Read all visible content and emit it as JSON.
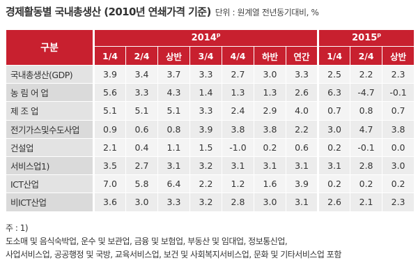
{
  "title": "경제활동별 국내총생산 (2010년 연쇄가격 기준)",
  "unit": "단위 : 원계열 전년동기대비, %",
  "header": {
    "gubun": "구분",
    "year2014": "2014",
    "year2015": "2015",
    "preliminary_mark": "p",
    "cols2014": [
      "1/4",
      "2/4",
      "상반",
      "3/4",
      "4/4",
      "하반",
      "연간"
    ],
    "cols2015": [
      "1/4",
      "2/4",
      "상반"
    ]
  },
  "rows": [
    {
      "label": "국내총생산(GDP)",
      "values": [
        "3.9",
        "3.4",
        "3.7",
        "3.3",
        "2.7",
        "3.0",
        "3.3",
        "2.5",
        "2.2",
        "2.3"
      ]
    },
    {
      "label": "농 림 어 업",
      "values": [
        "5.6",
        "3.3",
        "4.3",
        "1.4",
        "1.3",
        "1.3",
        "2.6",
        "6.3",
        "-4.7",
        "-0.1"
      ]
    },
    {
      "label": "제 조 업",
      "values": [
        "5.1",
        "5.1",
        "5.1",
        "3.3",
        "2.4",
        "2.9",
        "4.0",
        "0.7",
        "0.8",
        "0.7"
      ]
    },
    {
      "label": "전기가스및수도사업",
      "values": [
        "0.9",
        "0.6",
        "0.8",
        "3.9",
        "3.8",
        "3.8",
        "2.2",
        "3.0",
        "4.7",
        "3.8"
      ]
    },
    {
      "label": "건설업",
      "values": [
        "2.1",
        "0.4",
        "1.1",
        "1.5",
        "-1.0",
        "0.2",
        "0.6",
        "0.2",
        "-0.1",
        "0.0"
      ]
    },
    {
      "label": "서비스업1)",
      "values": [
        "3.5",
        "2.7",
        "3.1",
        "3.2",
        "3.1",
        "3.1",
        "3.1",
        "3.1",
        "2.8",
        "3.0"
      ]
    },
    {
      "label": "ICT산업",
      "values": [
        "7.0",
        "5.8",
        "6.4",
        "2.2",
        "1.2",
        "1.6",
        "3.9",
        "0.2",
        "0.2",
        "0.2"
      ]
    },
    {
      "label": "비ICT산업",
      "values": [
        "3.6",
        "3.0",
        "3.3",
        "3.2",
        "2.8",
        "3.0",
        "3.1",
        "2.6",
        "2.1",
        "2.3"
      ]
    }
  ],
  "notes": {
    "heading": "주 : 1)",
    "line1": "도소매 및 음식숙박업, 운수 및 보관업, 금융 및 보험업, 부동산 및 임대업, 정보통신업,",
    "line2": "사업서비스업, 공공행정 및 국방, 교육서비스업, 보건 및 사회복지서비스업, 문화 및 기타서비스업 포함"
  },
  "colors": {
    "header_red": "#c8202f",
    "row_light": "#f4f4f4",
    "row_dark": "#ececec",
    "label_bg": "#e3e3e3"
  }
}
